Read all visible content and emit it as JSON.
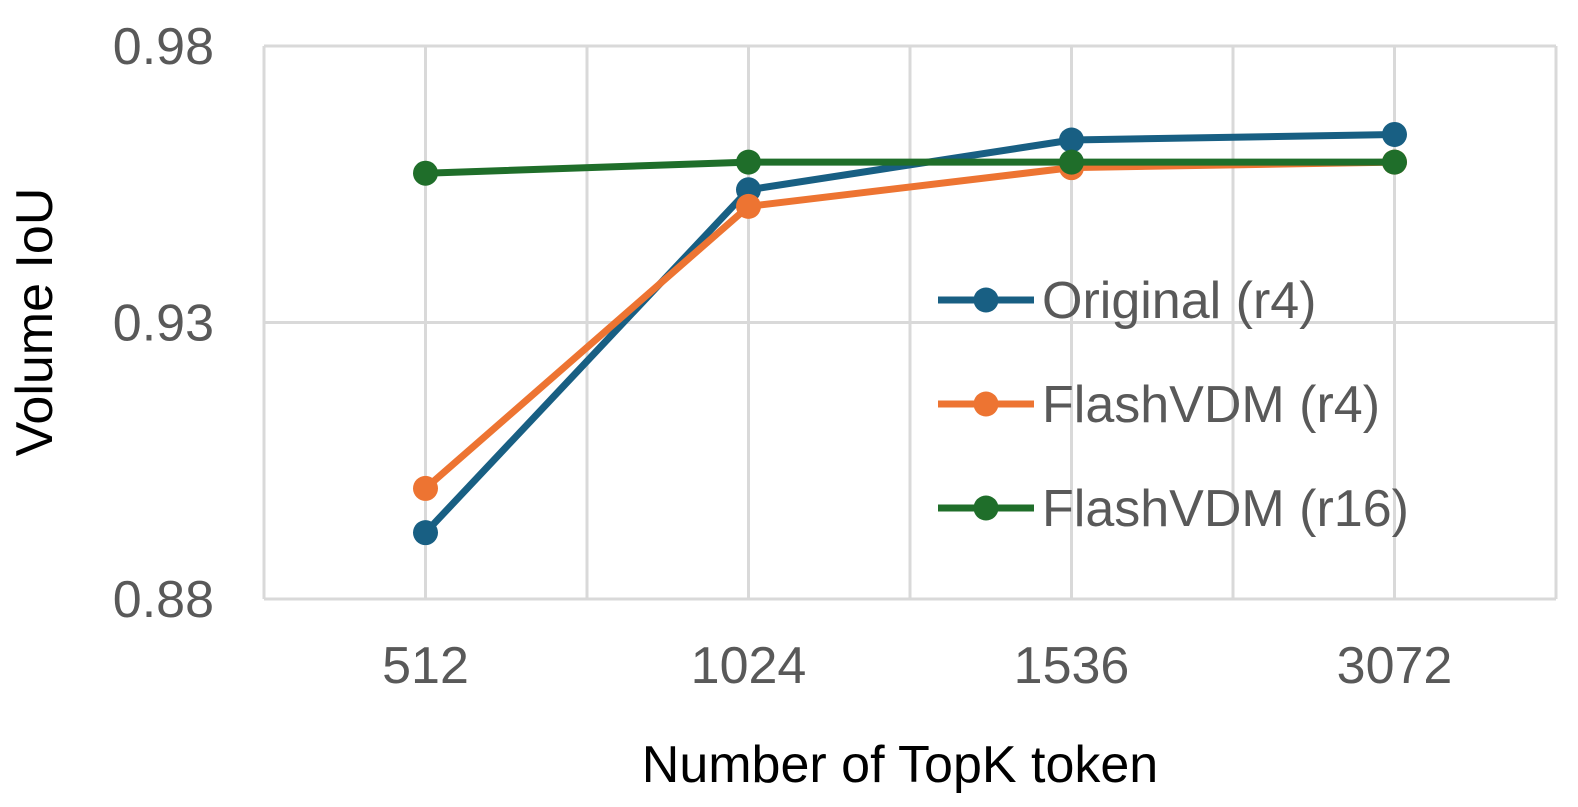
{
  "chart_data": {
    "type": "line",
    "title": "",
    "xlabel": "Number of TopK token",
    "ylabel": "Volume IoU",
    "categories": [
      "512",
      "1024",
      "1536",
      "3072"
    ],
    "ylim": [
      0.88,
      0.98
    ],
    "yticks": [
      "0.88",
      "0.93",
      "0.98"
    ],
    "grid": true,
    "legend_position": "right",
    "series": [
      {
        "name": "Original (r4)",
        "color": "#185f83",
        "values": [
          0.892,
          0.954,
          0.963,
          0.964
        ]
      },
      {
        "name": "FlashVDM (r4)",
        "color": "#ed7432",
        "values": [
          0.9,
          0.951,
          0.958,
          0.959
        ]
      },
      {
        "name": "FlashVDM (r16)",
        "color": "#1f6e2a",
        "values": [
          0.957,
          0.959,
          0.959,
          0.959
        ]
      }
    ]
  }
}
